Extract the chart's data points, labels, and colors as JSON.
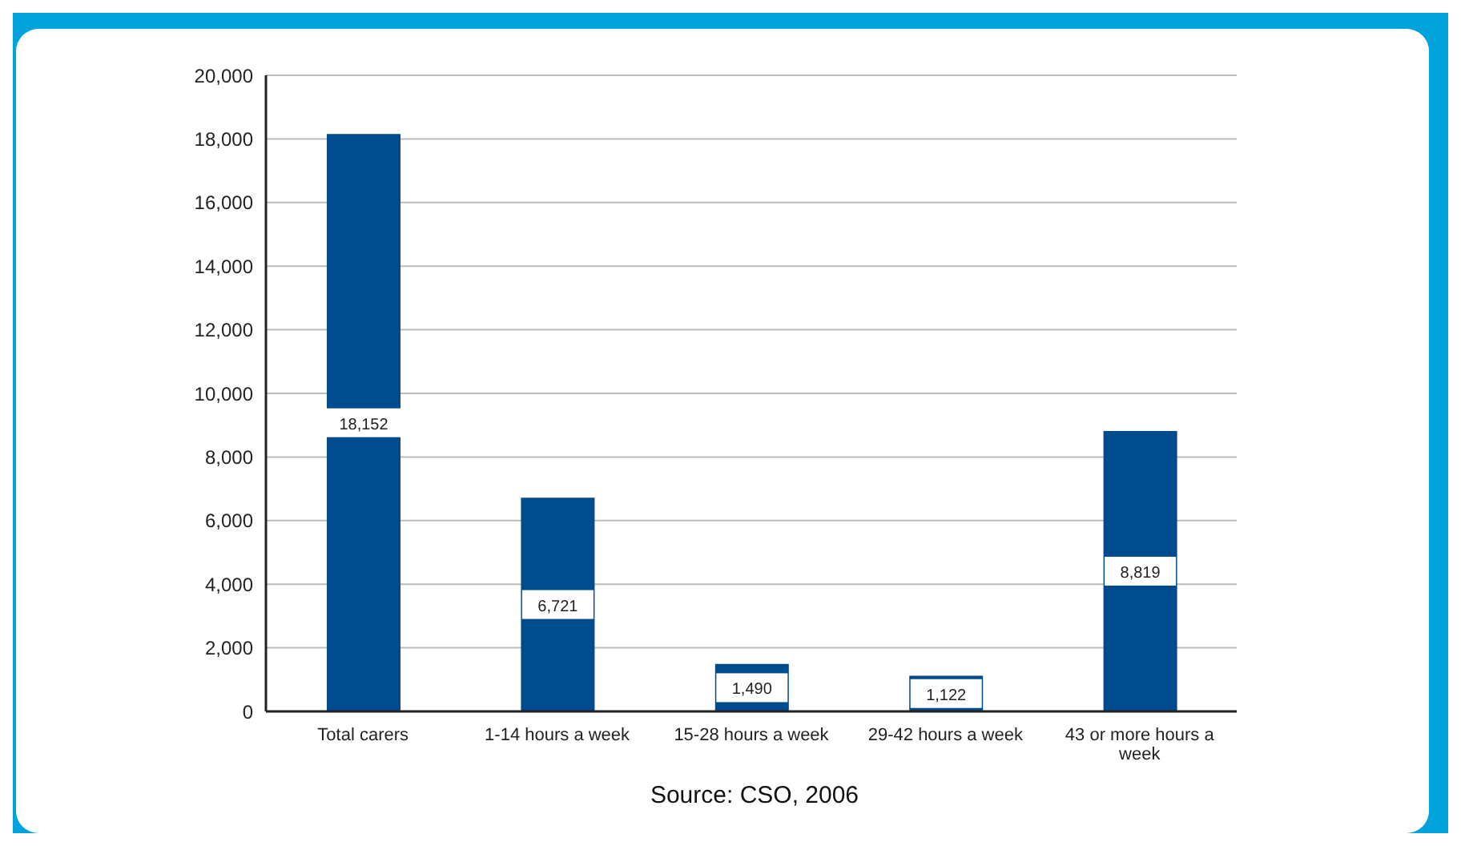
{
  "chart_data": {
    "type": "bar",
    "categories": [
      "Total carers",
      "1-14 hours a week",
      "15-28 hours a week",
      "29-42 hours a week",
      "43 or more hours a week"
    ],
    "values": [
      18152,
      6721,
      1490,
      1122,
      8819
    ],
    "color": "#004b8d",
    "ylim": [
      0,
      20000
    ],
    "yticks": [
      {
        "value": 0,
        "label": "0"
      },
      {
        "value": 2000,
        "label": "2,000"
      },
      {
        "value": 4000,
        "label": "4,000"
      },
      {
        "value": 6000,
        "label": "6,000"
      },
      {
        "value": 8000,
        "label": "8,000"
      },
      {
        "value": 10000,
        "label": "10,000"
      },
      {
        "value": 12000,
        "label": "12,000"
      },
      {
        "value": 14000,
        "label": "14,000"
      },
      {
        "value": 16000,
        "label": "16,000"
      },
      {
        "value": 18000,
        "label": "18,000"
      },
      {
        "value": 20000,
        "label": "20,000"
      }
    ],
    "grid": "y",
    "data_labels": true,
    "value_labels": [
      "18,152",
      "6,721",
      "1,490",
      "1,122",
      "8,819"
    ],
    "annotations": [
      "Source: CSO, 2006"
    ]
  }
}
